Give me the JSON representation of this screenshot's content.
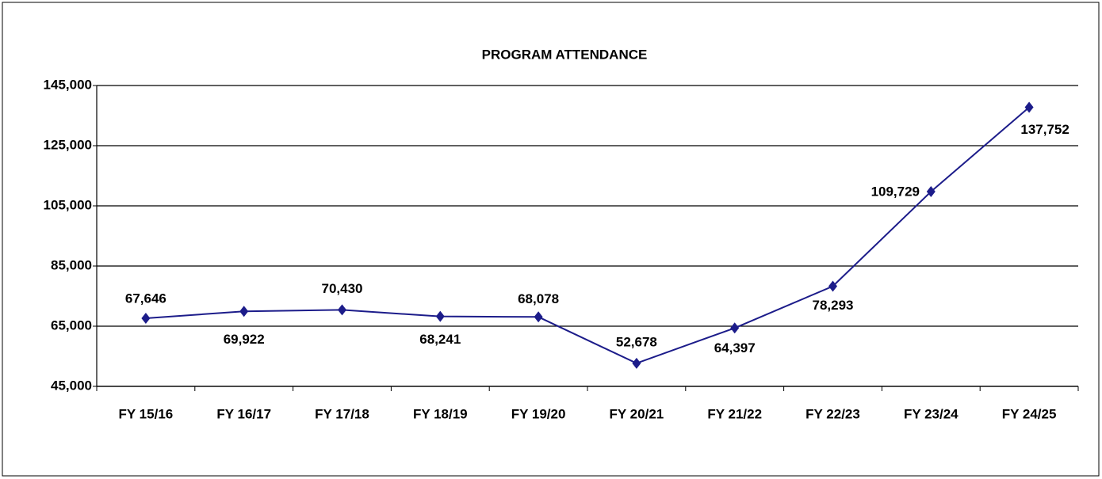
{
  "chart_data": {
    "type": "line",
    "title": "PROGRAM  ATTENDANCE",
    "categories": [
      "FY 15/16",
      "FY 16/17",
      "FY 17/18",
      "FY 18/19",
      "FY 19/20",
      "FY 20/21",
      "FY 21/22",
      "FY 22/23",
      "FY 23/24",
      "FY 24/25"
    ],
    "series": [
      {
        "name": "Program Attendance",
        "color": "#1c1c8a",
        "values": [
          67646,
          69922,
          70430,
          68241,
          68078,
          52678,
          64397,
          78293,
          109729,
          137752
        ],
        "value_labels": [
          "67,646",
          "69,922",
          "70,430",
          "68,241",
          "68,078",
          "52,678",
          "64,397",
          "78,293",
          "109,729",
          "137,752"
        ]
      }
    ],
    "ylim": [
      45000,
      145000
    ],
    "yticks": [
      {
        "value": 45000,
        "label": "45,000"
      },
      {
        "value": 65000,
        "label": "65,000"
      },
      {
        "value": 85000,
        "label": "85,000"
      },
      {
        "value": 105000,
        "label": "105,000"
      },
      {
        "value": 125000,
        "label": "125,000"
      },
      {
        "value": 145000,
        "label": "145,000"
      }
    ],
    "grid": true
  }
}
